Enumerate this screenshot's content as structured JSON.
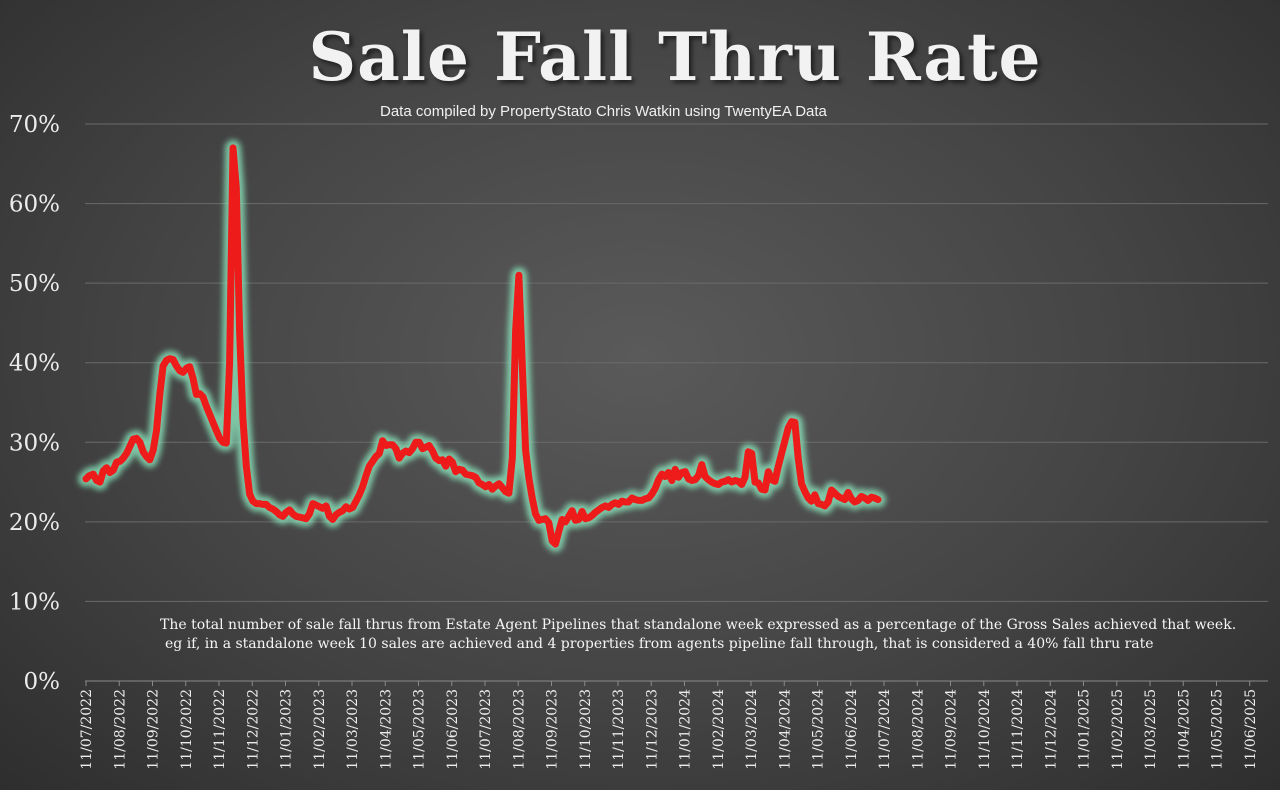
{
  "chart_data": {
    "type": "line",
    "title": "Sale Fall Thru Rate",
    "subtitle": "Data compiled by PropertyStato Chris Watkin using TwentyEA Data",
    "notes": [
      "The total number of sale fall thrus from Estate Agent Pipelines that standalone week expressed as a percentage of the Gross Sales achieved that week.",
      "eg if, in a standalone week 10 sales are achieved and 4 properties from agents pipeline fall through, that is considered a 40%  fall thru rate"
    ],
    "xlabel": "",
    "ylabel": "",
    "ylim": [
      0,
      70
    ],
    "yticks": [
      0,
      10,
      20,
      30,
      40,
      50,
      60,
      70
    ],
    "ytick_labels": [
      "0%",
      "10%",
      "20%",
      "30%",
      "40%",
      "50%",
      "60%",
      "70%"
    ],
    "xtick_labels": [
      "11/07/2022",
      "11/08/2022",
      "11/09/2022",
      "11/10/2022",
      "11/11/2022",
      "11/12/2022",
      "11/01/2023",
      "11/02/2023",
      "11/03/2023",
      "11/04/2023",
      "11/05/2023",
      "11/06/2023",
      "11/07/2023",
      "11/08/2023",
      "11/09/2023",
      "11/10/2023",
      "11/11/2023",
      "11/12/2023",
      "11/01/2024",
      "11/02/2024",
      "11/03/2024",
      "11/04/2024",
      "11/05/2024",
      "11/06/2024",
      "11/07/2024",
      "11/08/2024",
      "11/09/2024",
      "11/10/2024",
      "11/11/2024",
      "11/12/2024",
      "11/01/2025",
      "11/02/2025",
      "11/03/2025",
      "11/04/2025",
      "11/05/2025",
      "11/06/2025"
    ],
    "grid": true,
    "legend": "none",
    "line_color": "#ee1b1b",
    "glow_color": "#8ff0c4",
    "x_unit": "months since 11/07/2022",
    "series": [
      {
        "name": "Sale Fall Thru Rate",
        "points": [
          [
            0.0,
            25.4
          ],
          [
            0.1,
            25.8
          ],
          [
            0.22,
            26.0
          ],
          [
            0.32,
            25.2
          ],
          [
            0.42,
            25.0
          ],
          [
            0.52,
            26.4
          ],
          [
            0.62,
            26.8
          ],
          [
            0.72,
            26.2
          ],
          [
            0.82,
            26.5
          ],
          [
            0.92,
            27.5
          ],
          [
            1.02,
            27.6
          ],
          [
            1.12,
            28.0
          ],
          [
            1.22,
            28.6
          ],
          [
            1.32,
            29.5
          ],
          [
            1.42,
            30.4
          ],
          [
            1.52,
            30.5
          ],
          [
            1.62,
            30.0
          ],
          [
            1.72,
            28.8
          ],
          [
            1.82,
            28.2
          ],
          [
            1.92,
            27.8
          ],
          [
            2.02,
            29.0
          ],
          [
            2.12,
            31.5
          ],
          [
            2.22,
            36.0
          ],
          [
            2.32,
            39.6
          ],
          [
            2.42,
            40.3
          ],
          [
            2.52,
            40.5
          ],
          [
            2.62,
            40.4
          ],
          [
            2.72,
            39.6
          ],
          [
            2.82,
            39.0
          ],
          [
            2.92,
            38.8
          ],
          [
            3.02,
            39.3
          ],
          [
            3.12,
            39.5
          ],
          [
            3.22,
            38.0
          ],
          [
            3.32,
            36.0
          ],
          [
            3.42,
            36.1
          ],
          [
            3.52,
            35.7
          ],
          [
            3.62,
            34.5
          ],
          [
            3.72,
            33.5
          ],
          [
            3.82,
            32.5
          ],
          [
            3.92,
            31.5
          ],
          [
            4.02,
            30.5
          ],
          [
            4.12,
            30.0
          ],
          [
            4.22,
            29.9
          ],
          [
            4.32,
            40.0
          ],
          [
            4.42,
            67.0
          ],
          [
            4.52,
            62.0
          ],
          [
            4.62,
            44.0
          ],
          [
            4.72,
            33.0
          ],
          [
            4.82,
            27.0
          ],
          [
            4.92,
            23.5
          ],
          [
            5.02,
            22.6
          ],
          [
            5.12,
            22.3
          ],
          [
            5.22,
            22.3
          ],
          [
            5.32,
            22.2
          ],
          [
            5.42,
            22.2
          ],
          [
            5.52,
            21.8
          ],
          [
            5.62,
            21.6
          ],
          [
            5.72,
            21.3
          ],
          [
            5.82,
            20.9
          ],
          [
            5.92,
            20.7
          ],
          [
            6.02,
            21.2
          ],
          [
            6.12,
            21.5
          ],
          [
            6.22,
            21.0
          ],
          [
            6.32,
            20.7
          ],
          [
            6.42,
            20.6
          ],
          [
            6.52,
            20.5
          ],
          [
            6.62,
            20.4
          ],
          [
            6.72,
            21.0
          ],
          [
            6.82,
            22.3
          ],
          [
            6.92,
            22.1
          ],
          [
            7.02,
            21.9
          ],
          [
            7.12,
            21.7
          ],
          [
            7.22,
            22.0
          ],
          [
            7.32,
            20.7
          ],
          [
            7.42,
            20.3
          ],
          [
            7.52,
            20.9
          ],
          [
            7.62,
            21.2
          ],
          [
            7.72,
            21.4
          ],
          [
            7.82,
            21.9
          ],
          [
            7.92,
            21.6
          ],
          [
            8.02,
            21.8
          ],
          [
            8.12,
            22.6
          ],
          [
            8.22,
            23.4
          ],
          [
            8.32,
            24.4
          ],
          [
            8.42,
            25.8
          ],
          [
            8.52,
            27.0
          ],
          [
            8.62,
            27.6
          ],
          [
            8.72,
            28.2
          ],
          [
            8.82,
            28.6
          ],
          [
            8.92,
            30.2
          ],
          [
            9.02,
            29.6
          ],
          [
            9.12,
            29.7
          ],
          [
            9.22,
            29.7
          ],
          [
            9.32,
            29.2
          ],
          [
            9.42,
            28.0
          ],
          [
            9.52,
            28.6
          ],
          [
            9.62,
            28.9
          ],
          [
            9.72,
            28.7
          ],
          [
            9.82,
            29.2
          ],
          [
            9.92,
            30.0
          ],
          [
            10.02,
            30.0
          ],
          [
            10.12,
            29.2
          ],
          [
            10.22,
            29.4
          ],
          [
            10.32,
            29.6
          ],
          [
            10.42,
            28.9
          ],
          [
            10.52,
            28.0
          ],
          [
            10.62,
            27.7
          ],
          [
            10.72,
            27.8
          ],
          [
            10.82,
            27.0
          ],
          [
            10.92,
            27.9
          ],
          [
            11.02,
            27.5
          ],
          [
            11.12,
            26.3
          ],
          [
            11.22,
            26.6
          ],
          [
            11.32,
            26.5
          ],
          [
            11.42,
            26.0
          ],
          [
            11.52,
            25.9
          ],
          [
            11.62,
            25.8
          ],
          [
            11.72,
            25.6
          ],
          [
            11.82,
            24.9
          ],
          [
            11.92,
            24.7
          ],
          [
            12.02,
            24.4
          ],
          [
            12.12,
            24.7
          ],
          [
            12.22,
            24.1
          ],
          [
            12.32,
            24.5
          ],
          [
            12.42,
            24.8
          ],
          [
            12.52,
            24.3
          ],
          [
            12.62,
            23.8
          ],
          [
            12.72,
            23.6
          ],
          [
            12.82,
            28.0
          ],
          [
            12.92,
            44.0
          ],
          [
            13.02,
            51.0
          ],
          [
            13.12,
            40.0
          ],
          [
            13.22,
            29.0
          ],
          [
            13.32,
            25.5
          ],
          [
            13.42,
            23.0
          ],
          [
            13.52,
            21.0
          ],
          [
            13.62,
            20.2
          ],
          [
            13.72,
            20.3
          ],
          [
            13.82,
            20.4
          ],
          [
            13.92,
            19.9
          ],
          [
            14.02,
            17.6
          ],
          [
            14.12,
            17.2
          ],
          [
            14.22,
            18.8
          ],
          [
            14.32,
            20.3
          ],
          [
            14.42,
            20.0
          ],
          [
            14.52,
            20.7
          ],
          [
            14.62,
            21.4
          ],
          [
            14.72,
            20.2
          ],
          [
            14.82,
            20.3
          ],
          [
            14.92,
            21.3
          ],
          [
            15.02,
            20.4
          ],
          [
            15.12,
            20.5
          ],
          [
            15.22,
            20.8
          ],
          [
            15.32,
            21.2
          ],
          [
            15.42,
            21.5
          ],
          [
            15.52,
            21.8
          ],
          [
            15.62,
            22.0
          ],
          [
            15.72,
            21.8
          ],
          [
            15.82,
            22.2
          ],
          [
            15.92,
            22.4
          ],
          [
            16.02,
            22.2
          ],
          [
            16.12,
            22.6
          ],
          [
            16.22,
            22.5
          ],
          [
            16.32,
            22.5
          ],
          [
            16.42,
            23.0
          ],
          [
            16.52,
            22.8
          ],
          [
            16.62,
            22.7
          ],
          [
            16.72,
            22.7
          ],
          [
            16.82,
            22.9
          ],
          [
            16.92,
            23.0
          ],
          [
            17.02,
            23.5
          ],
          [
            17.12,
            24.2
          ],
          [
            17.22,
            25.3
          ],
          [
            17.32,
            26.0
          ],
          [
            17.42,
            25.7
          ],
          [
            17.52,
            26.2
          ],
          [
            17.62,
            25.2
          ],
          [
            17.72,
            26.6
          ],
          [
            17.82,
            25.6
          ],
          [
            17.92,
            26.2
          ],
          [
            18.02,
            26.3
          ],
          [
            18.12,
            25.4
          ],
          [
            18.22,
            25.2
          ],
          [
            18.32,
            25.3
          ],
          [
            18.42,
            25.8
          ],
          [
            18.52,
            27.2
          ],
          [
            18.62,
            25.7
          ],
          [
            18.72,
            25.3
          ],
          [
            18.82,
            25.0
          ],
          [
            18.92,
            24.8
          ],
          [
            19.02,
            24.7
          ],
          [
            19.12,
            25.0
          ],
          [
            19.22,
            25.1
          ],
          [
            19.32,
            25.3
          ],
          [
            19.42,
            25.0
          ],
          [
            19.52,
            25.2
          ],
          [
            19.62,
            25.1
          ],
          [
            19.72,
            24.7
          ],
          [
            19.82,
            25.6
          ],
          [
            19.92,
            28.8
          ],
          [
            20.02,
            28.6
          ],
          [
            20.12,
            25.0
          ],
          [
            20.22,
            24.9
          ],
          [
            20.32,
            24.1
          ],
          [
            20.42,
            24.0
          ],
          [
            20.52,
            26.3
          ],
          [
            20.62,
            25.3
          ],
          [
            20.72,
            25.1
          ],
          [
            20.82,
            27.0
          ],
          [
            20.92,
            28.6
          ],
          [
            21.02,
            30.2
          ],
          [
            21.12,
            31.8
          ],
          [
            21.22,
            32.6
          ],
          [
            21.32,
            32.5
          ],
          [
            21.42,
            28.0
          ],
          [
            21.52,
            24.8
          ],
          [
            21.62,
            23.8
          ],
          [
            21.72,
            23.0
          ],
          [
            21.82,
            22.6
          ],
          [
            21.92,
            23.4
          ],
          [
            22.02,
            22.3
          ],
          [
            22.12,
            22.2
          ],
          [
            22.22,
            22.0
          ],
          [
            22.32,
            22.5
          ],
          [
            22.42,
            24.0
          ],
          [
            22.52,
            23.6
          ],
          [
            22.62,
            23.2
          ],
          [
            22.72,
            23.0
          ],
          [
            22.82,
            22.8
          ],
          [
            22.92,
            23.7
          ],
          [
            23.02,
            22.9
          ],
          [
            23.12,
            22.5
          ],
          [
            23.22,
            22.7
          ],
          [
            23.32,
            23.2
          ],
          [
            23.42,
            23.0
          ],
          [
            23.52,
            22.7
          ],
          [
            23.62,
            23.1
          ],
          [
            23.72,
            23.0
          ],
          [
            23.82,
            22.8
          ]
        ]
      }
    ]
  }
}
